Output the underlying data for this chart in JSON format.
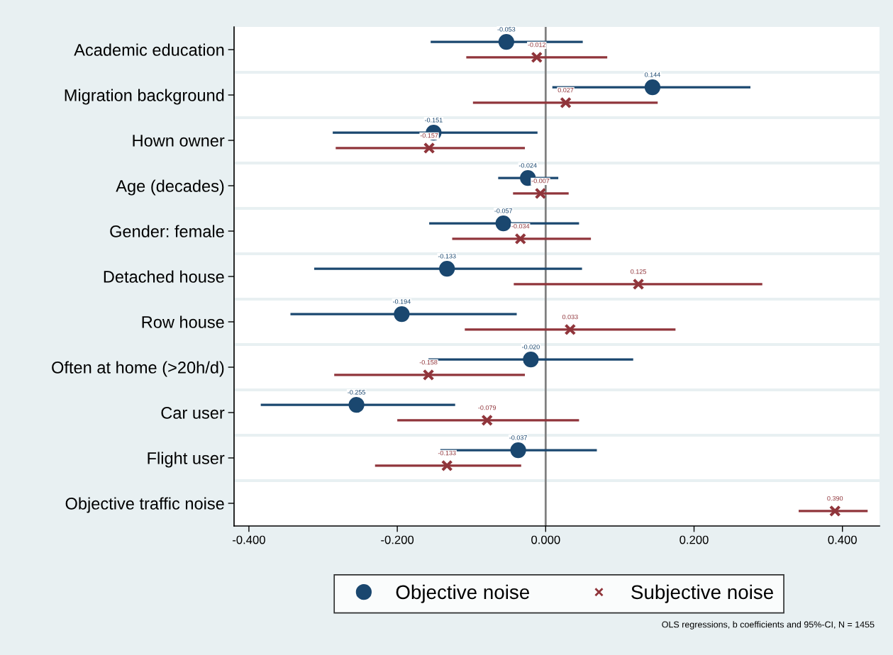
{
  "chart_data": {
    "type": "scatter",
    "orientation": "horizontal",
    "categories": [
      "Academic education",
      "Migration background",
      "Hown owner",
      "Age (decades)",
      "Gender: female",
      "Detached house",
      "Row house",
      "Often at home (>20h/d)",
      "Car user",
      "Flight user",
      "Objective traffic noise"
    ],
    "series": [
      {
        "name": "Objective noise",
        "color": "#1a476f",
        "marker": "circle",
        "values": [
          -0.053,
          0.144,
          -0.151,
          -0.024,
          -0.057,
          -0.133,
          -0.194,
          -0.02,
          -0.255,
          -0.037,
          null
        ],
        "value_labels": [
          "-0.053",
          "0.144",
          "-0.151",
          "-0.024",
          "-0.057",
          "-0.133",
          "-0.194",
          "-0.020",
          "-0.255",
          "-0.037",
          null
        ],
        "errors": [
          [
            -0.155,
            0.05
          ],
          [
            0.009,
            0.276
          ],
          [
            -0.287,
            -0.011
          ],
          [
            -0.064,
            0.017
          ],
          [
            -0.157,
            0.045
          ],
          [
            -0.312,
            0.049
          ],
          [
            -0.344,
            -0.039
          ],
          [
            -0.158,
            0.118
          ],
          [
            -0.384,
            -0.122
          ],
          [
            -0.142,
            0.069
          ],
          null
        ]
      },
      {
        "name": "Subjective noise",
        "color": "#90353b",
        "marker": "cross",
        "values": [
          -0.012,
          0.027,
          -0.157,
          -0.007,
          -0.034,
          0.125,
          0.033,
          -0.158,
          -0.079,
          -0.133,
          0.39
        ],
        "value_labels": [
          "-0.012",
          "0.027",
          "-0.157",
          "-0.007",
          "-0.034",
          "0.125",
          "0.033",
          "-0.158",
          "-0.079",
          "-0.133",
          "0.390"
        ],
        "errors": [
          [
            -0.107,
            0.083
          ],
          [
            -0.098,
            0.151
          ],
          [
            -0.283,
            -0.028
          ],
          [
            -0.044,
            0.031
          ],
          [
            -0.126,
            0.061
          ],
          [
            -0.043,
            0.292
          ],
          [
            -0.109,
            0.175
          ],
          [
            -0.285,
            -0.028
          ],
          [
            -0.2,
            0.045
          ],
          [
            -0.23,
            -0.033
          ],
          [
            0.341,
            0.434
          ]
        ]
      }
    ],
    "xlim": [
      -0.42,
      0.45
    ],
    "xticks": [
      {
        "value": -0.4,
        "label": "-0.400"
      },
      {
        "value": -0.2,
        "label": "-0.200"
      },
      {
        "value": 0,
        "label": "0.000"
      },
      {
        "value": 0.2,
        "label": "0.200"
      },
      {
        "value": 0.4,
        "label": "0.400"
      }
    ],
    "ref_lines": [
      {
        "axis": "x",
        "value": 0,
        "color": "#808080"
      }
    ],
    "grid": "y",
    "legend": "bottom",
    "annotations": [
      "OLS regressions, b coefficients and 95%-CI, N = 1455"
    ]
  }
}
